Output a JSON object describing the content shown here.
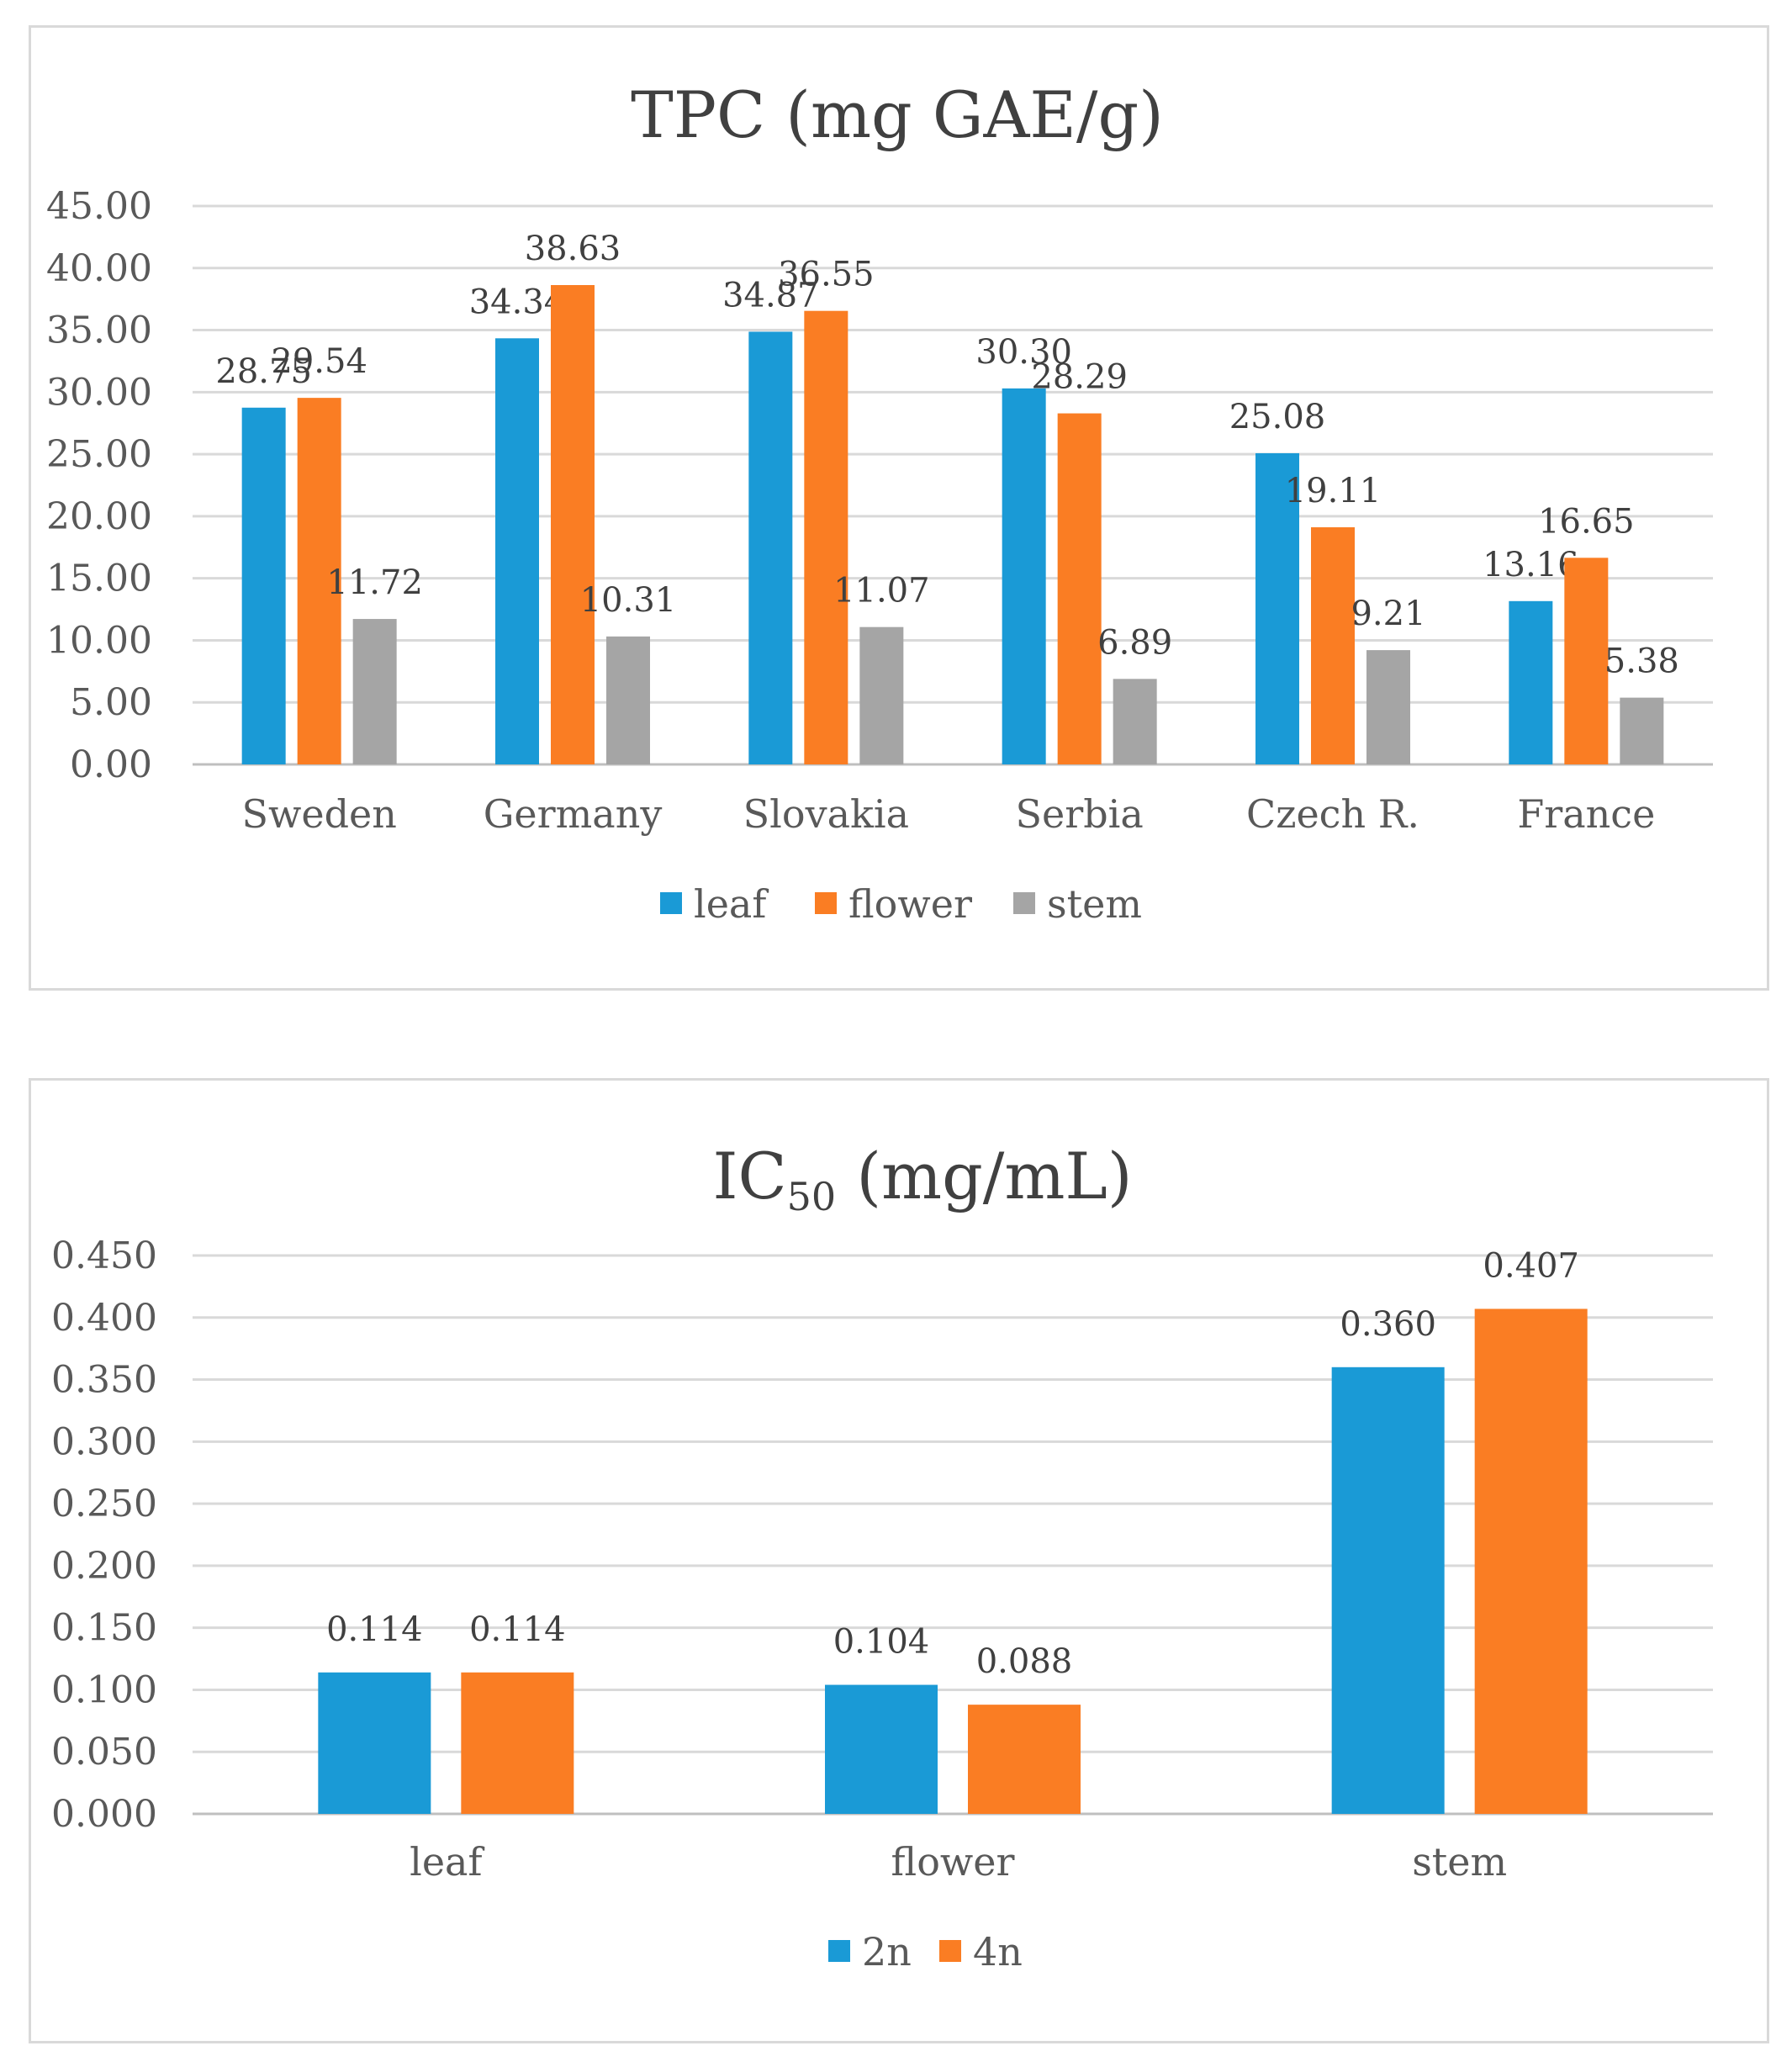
{
  "chart_data": [
    {
      "type": "bar",
      "title": "TPC (mg GAE/g)",
      "categories": [
        "Sweden",
        "Germany",
        "Slovakia",
        "Serbia",
        "Czech R.",
        "France"
      ],
      "series": [
        {
          "name": "leaf",
          "color": "#1a9ad6",
          "values": [
            28.75,
            34.34,
            34.87,
            30.3,
            25.08,
            13.16
          ],
          "labels": [
            "28.75",
            "34.34",
            "34.87",
            "30.30",
            "25.08",
            "13.16"
          ]
        },
        {
          "name": "flower",
          "color": "#fa7d23",
          "values": [
            29.54,
            38.63,
            36.55,
            28.29,
            19.11,
            16.65
          ],
          "labels": [
            "29.54",
            "38.63",
            "36.55",
            "28.29",
            "19.11",
            "16.65"
          ]
        },
        {
          "name": "stem",
          "color": "#a5a5a5",
          "values": [
            11.72,
            10.31,
            11.07,
            6.89,
            9.21,
            5.38
          ],
          "labels": [
            "11.72",
            "10.31",
            "11.07",
            "6.89",
            "9.21",
            "5.38"
          ]
        }
      ],
      "ylim": [
        0,
        45
      ],
      "yticks": [
        "0.00",
        "5.00",
        "10.00",
        "15.00",
        "20.00",
        "25.00",
        "30.00",
        "35.00",
        "40.00",
        "45.00"
      ],
      "grid": true,
      "legend": "bottom"
    },
    {
      "type": "bar",
      "title_main": "IC",
      "title_sub": "50",
      "title_rest": " (mg/mL)",
      "categories": [
        "leaf",
        "flower",
        "stem"
      ],
      "series": [
        {
          "name": "2n",
          "color": "#1a9ad6",
          "values": [
            0.114,
            0.104,
            0.36
          ],
          "labels": [
            "0.114",
            "0.104",
            "0.360"
          ]
        },
        {
          "name": "4n",
          "color": "#fa7d23",
          "values": [
            0.114,
            0.088,
            0.407
          ],
          "labels": [
            "0.114",
            "0.088",
            "0.407"
          ]
        }
      ],
      "ylim": [
        0,
        0.45
      ],
      "yticks": [
        "0.000",
        "0.050",
        "0.100",
        "0.150",
        "0.200",
        "0.250",
        "0.300",
        "0.350",
        "0.400",
        "0.450"
      ],
      "grid": true,
      "legend": "bottom"
    }
  ]
}
